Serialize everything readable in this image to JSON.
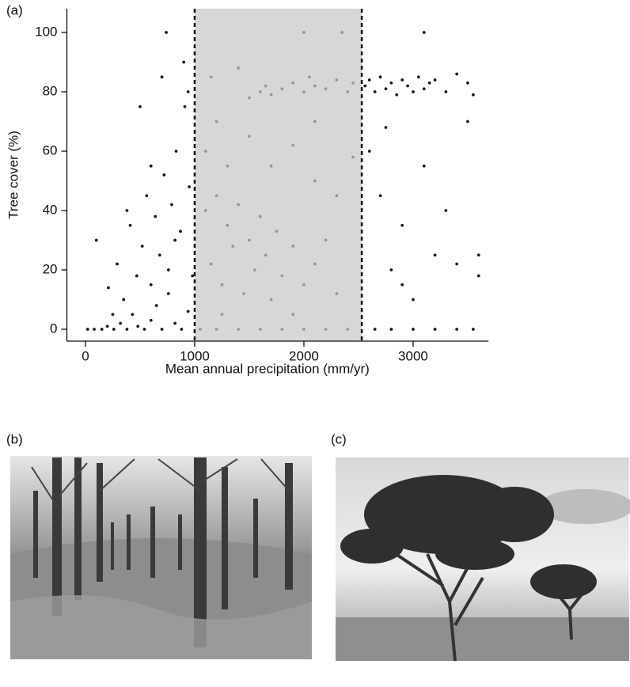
{
  "panel_labels": [
    "(a)",
    "(b)",
    "(c)"
  ],
  "chart_data": {
    "type": "scatter",
    "x_label": "Mean annual precipitation (mm/yr)",
    "y_label": "Tree cover (%)",
    "color": "#1a1a1a",
    "xlim": [
      -170,
      3690
    ],
    "ylim": [
      -4,
      108
    ],
    "xticks": [
      0,
      1000,
      2000,
      3000
    ],
    "yticks": [
      0,
      20,
      40,
      60,
      80,
      100
    ],
    "shaded_region": [
      1000,
      2530
    ],
    "shade_color": "#c8c8c8",
    "x": [
      20,
      80,
      150,
      200,
      260,
      320,
      380,
      430,
      480,
      540,
      600,
      650,
      700,
      760,
      820,
      880,
      940,
      100,
      210,
      290,
      350,
      410,
      470,
      520,
      560,
      600,
      640,
      680,
      720,
      760,
      790,
      830,
      870,
      910,
      950,
      980,
      500,
      740,
      700,
      900,
      380,
      250,
      600,
      820,
      940,
      1050,
      1200,
      1400,
      1600,
      1800,
      2000,
      2200,
      2400,
      1100,
      1150,
      1200,
      1250,
      1300,
      1350,
      1400,
      1450,
      1500,
      1550,
      1600,
      1650,
      1700,
      1750,
      1800,
      1900,
      2000,
      2100,
      2200,
      2300,
      1100,
      1200,
      1300,
      1500,
      1700,
      1900,
      2100,
      2300,
      2450,
      1600,
      1650,
      1700,
      1800,
      1900,
      2000,
      2050,
      2100,
      2200,
      2300,
      2400,
      2450,
      1500,
      1400,
      1150,
      2000,
      2350,
      2100,
      1250,
      1900,
      2560,
      2600,
      2650,
      2700,
      2750,
      2800,
      2850,
      2900,
      2950,
      3000,
      3050,
      3100,
      3150,
      3200,
      3300,
      3400,
      3500,
      3550,
      3100,
      2600,
      2700,
      2800,
      2900,
      3000,
      3100,
      3200,
      3400,
      3500,
      3600,
      2650,
      2800,
      3000,
      3200,
      3400,
      3550,
      2750,
      3300,
      2900,
      3600
    ],
    "y": [
      0,
      0,
      0,
      1,
      0,
      2,
      0,
      5,
      1,
      0,
      3,
      8,
      0,
      12,
      2,
      0,
      6,
      30,
      14,
      22,
      10,
      35,
      18,
      28,
      45,
      15,
      38,
      25,
      52,
      20,
      42,
      60,
      33,
      75,
      48,
      18,
      75,
      100,
      85,
      90,
      40,
      5,
      55,
      30,
      80,
      0,
      0,
      0,
      0,
      0,
      0,
      0,
      0,
      40,
      22,
      45,
      15,
      35,
      28,
      42,
      12,
      30,
      20,
      38,
      25,
      10,
      33,
      18,
      28,
      15,
      22,
      30,
      12,
      60,
      70,
      55,
      65,
      55,
      62,
      50,
      45,
      58,
      80,
      82,
      79,
      81,
      83,
      80,
      85,
      82,
      81,
      84,
      80,
      83,
      78,
      88,
      85,
      100,
      100,
      70,
      5,
      5,
      82,
      84,
      80,
      85,
      81,
      83,
      79,
      84,
      82,
      80,
      85,
      81,
      83,
      84,
      80,
      86,
      83,
      79,
      100,
      60,
      45,
      20,
      35,
      10,
      55,
      25,
      22,
      70,
      18,
      0,
      0,
      0,
      0,
      0,
      0,
      68,
      40,
      15,
      25
    ]
  }
}
